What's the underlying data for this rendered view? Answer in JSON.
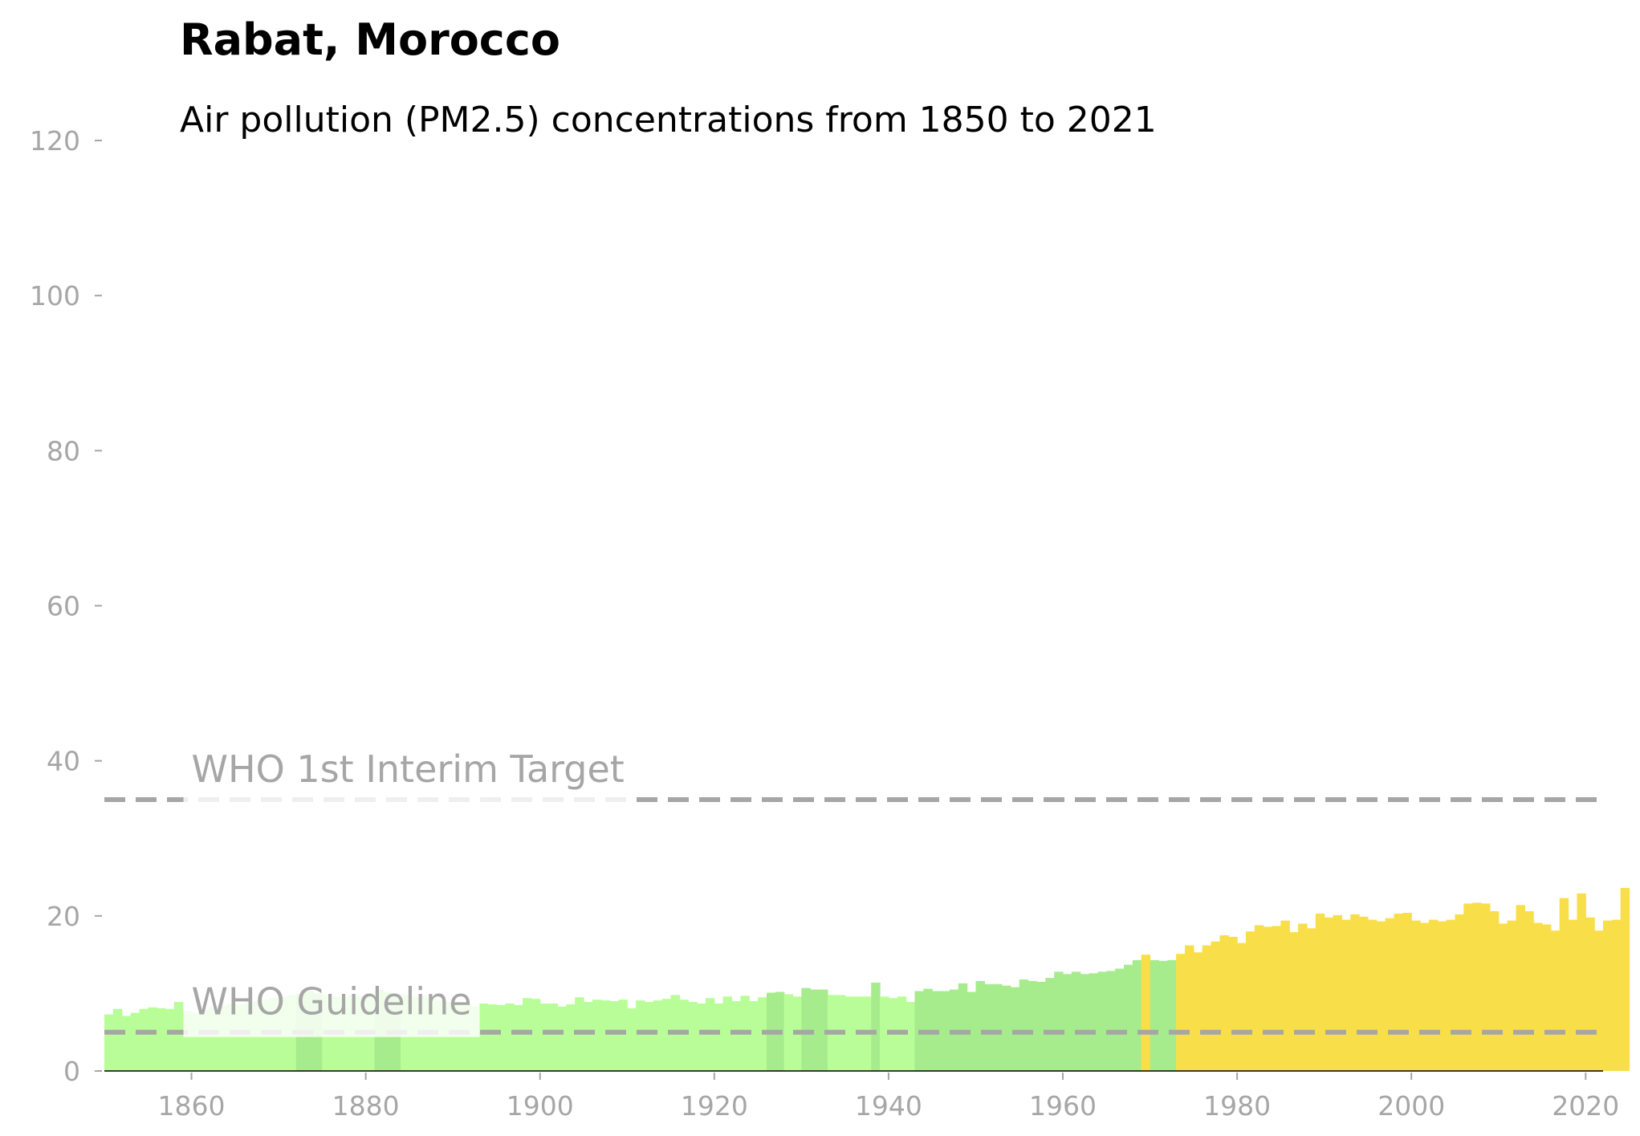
{
  "chart_data": {
    "type": "bar",
    "title": "Rabat, Morocco",
    "subtitle": "Air pollution (PM2.5) concentrations from 1850 to 2021",
    "xlabel": "",
    "ylabel": "",
    "xlim": [
      1850,
      2022
    ],
    "ylim": [
      0,
      120
    ],
    "x_ticks": [
      1860,
      1880,
      1900,
      1920,
      1940,
      1960,
      1980,
      2000,
      2020
    ],
    "y_ticks": [
      0,
      20,
      40,
      60,
      80,
      100,
      120
    ],
    "grid": false,
    "legend": "none",
    "colors": {
      "low": "#b9fd98",
      "mid": "#a6ec8c",
      "high": "#f8df4a",
      "reference_line": "#a6a6a6",
      "tick_label": "#a6a6a6"
    },
    "color_thresholds": {
      "mid_from": 10,
      "high_from": 15
    },
    "reference_lines": [
      {
        "label": "WHO 1st Interim Target",
        "value": 35,
        "label_at_x": 1860
      },
      {
        "label": "WHO Guideline",
        "value": 5,
        "label_at_x": 1860
      }
    ],
    "x_start": 1850,
    "x_end": 2021,
    "values": [
      7.3,
      8.0,
      7.1,
      7.5,
      8.0,
      8.2,
      8.1,
      8.0,
      8.9,
      7.7,
      7.5,
      7.9,
      8.3,
      8.4,
      8.6,
      8.6,
      8.8,
      9.0,
      9.2,
      9.4,
      9.6,
      9.8,
      10.0,
      10.3,
      10.0,
      9.8,
      9.6,
      9.5,
      9.8,
      9.7,
      9.9,
      10.5,
      10.2,
      10.0,
      9.8,
      9.6,
      9.7,
      9.3,
      9.1,
      8.9,
      8.9,
      8.5,
      8.3,
      8.7,
      8.6,
      8.5,
      8.7,
      8.5,
      9.4,
      9.3,
      8.7,
      8.7,
      8.3,
      8.6,
      9.5,
      8.9,
      9.2,
      9.1,
      9.0,
      9.2,
      8.1,
      9.1,
      8.9,
      9.1,
      9.3,
      9.8,
      9.2,
      8.9,
      8.7,
      9.4,
      8.7,
      9.6,
      9.0,
      9.7,
      9.0,
      9.5,
      10.1,
      10.2,
      9.9,
      9.6,
      10.7,
      10.5,
      10.5,
      9.8,
      9.8,
      9.6,
      9.6,
      9.6,
      11.4,
      9.6,
      9.4,
      9.6,
      8.9,
      10.3,
      10.6,
      10.3,
      10.3,
      10.5,
      11.3,
      10.2,
      11.6,
      11.2,
      11.2,
      11.0,
      10.8,
      11.8,
      11.6,
      11.5,
      12.0,
      12.8,
      12.5,
      12.8,
      12.5,
      12.6,
      12.8,
      12.9,
      13.2,
      13.7,
      14.3,
      15.0,
      14.3,
      14.2,
      14.3,
      15.1,
      16.2,
      15.3,
      16.2,
      16.7,
      17.5,
      17.3,
      16.5,
      18.0,
      18.8,
      18.6,
      18.7,
      19.4,
      17.9,
      19.0,
      18.4,
      20.3,
      19.8,
      20.1,
      19.5,
      20.2,
      19.9,
      19.5,
      19.3,
      19.7,
      20.3,
      20.4,
      19.4,
      19.1,
      19.5,
      19.3,
      19.5,
      20.2,
      21.6,
      21.7,
      21.6,
      20.6,
      19.0,
      19.4,
      21.4,
      20.6,
      19.1,
      18.9,
      18.1,
      22.3,
      19.5,
      22.9,
      19.8,
      18.1,
      19.4,
      19.5,
      23.6
    ]
  }
}
